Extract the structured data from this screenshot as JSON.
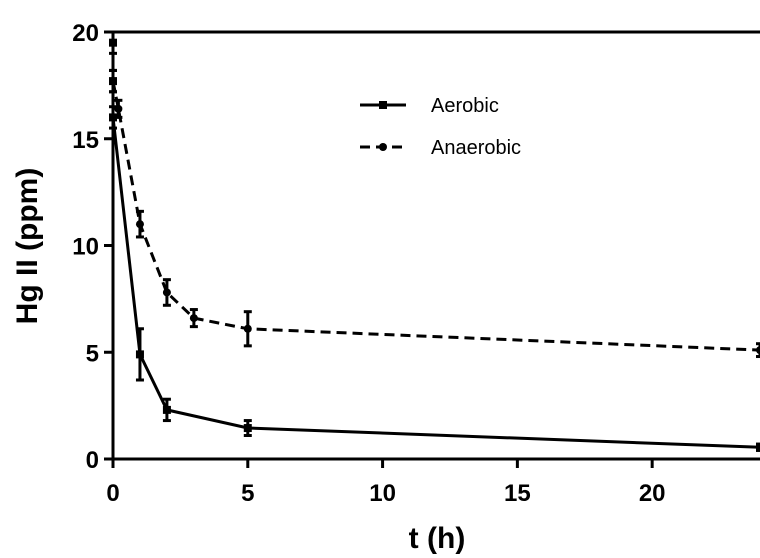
{
  "chart_data": {
    "type": "line",
    "title": "",
    "xlabel": "t (h)",
    "ylabel": "Hg II (ppm)",
    "xlim": [
      0,
      24
    ],
    "ylim": [
      0,
      20
    ],
    "x_ticks": [
      0,
      5,
      10,
      15,
      20
    ],
    "y_ticks": [
      0,
      5,
      10,
      15,
      20
    ],
    "x_tick_labels": [
      "0",
      "5",
      "10",
      "15",
      "20"
    ],
    "y_tick_labels": [
      "0",
      "5",
      "10",
      "15",
      "20"
    ],
    "grid": false,
    "legend_position": "top-center",
    "series": [
      {
        "name": "Aerobic",
        "line_style": "solid",
        "marker": "square",
        "points": [
          {
            "x": 0,
            "y": 19.5,
            "err": 0.5
          },
          {
            "x": 0,
            "y": 17.7,
            "err": 0.5
          },
          {
            "x": 0,
            "y": 16.0,
            "err": 0.5
          },
          {
            "x": 1,
            "y": 4.9,
            "err": 1.2
          },
          {
            "x": 2,
            "y": 2.3,
            "err": 0.5
          },
          {
            "x": 5,
            "y": 1.45,
            "err": 0.35
          },
          {
            "x": 24,
            "y": 0.55,
            "err": 0.15
          }
        ]
      },
      {
        "name": "Anaerobic",
        "line_style": "dashed",
        "marker": "circle",
        "points": [
          {
            "x": 0,
            "y": 17.7,
            "err": 0.5
          },
          {
            "x": 0.2,
            "y": 16.4,
            "err": 0.4
          },
          {
            "x": 1,
            "y": 11.0,
            "err": 0.6
          },
          {
            "x": 2,
            "y": 7.8,
            "err": 0.6
          },
          {
            "x": 3,
            "y": 6.6,
            "err": 0.4
          },
          {
            "x": 5,
            "y": 6.1,
            "err": 0.8
          },
          {
            "x": 24,
            "y": 5.1,
            "err": 0.3
          }
        ]
      }
    ]
  },
  "colors": {
    "series_color": "#000000",
    "axis_color": "#000000",
    "background": "#ffffff"
  }
}
